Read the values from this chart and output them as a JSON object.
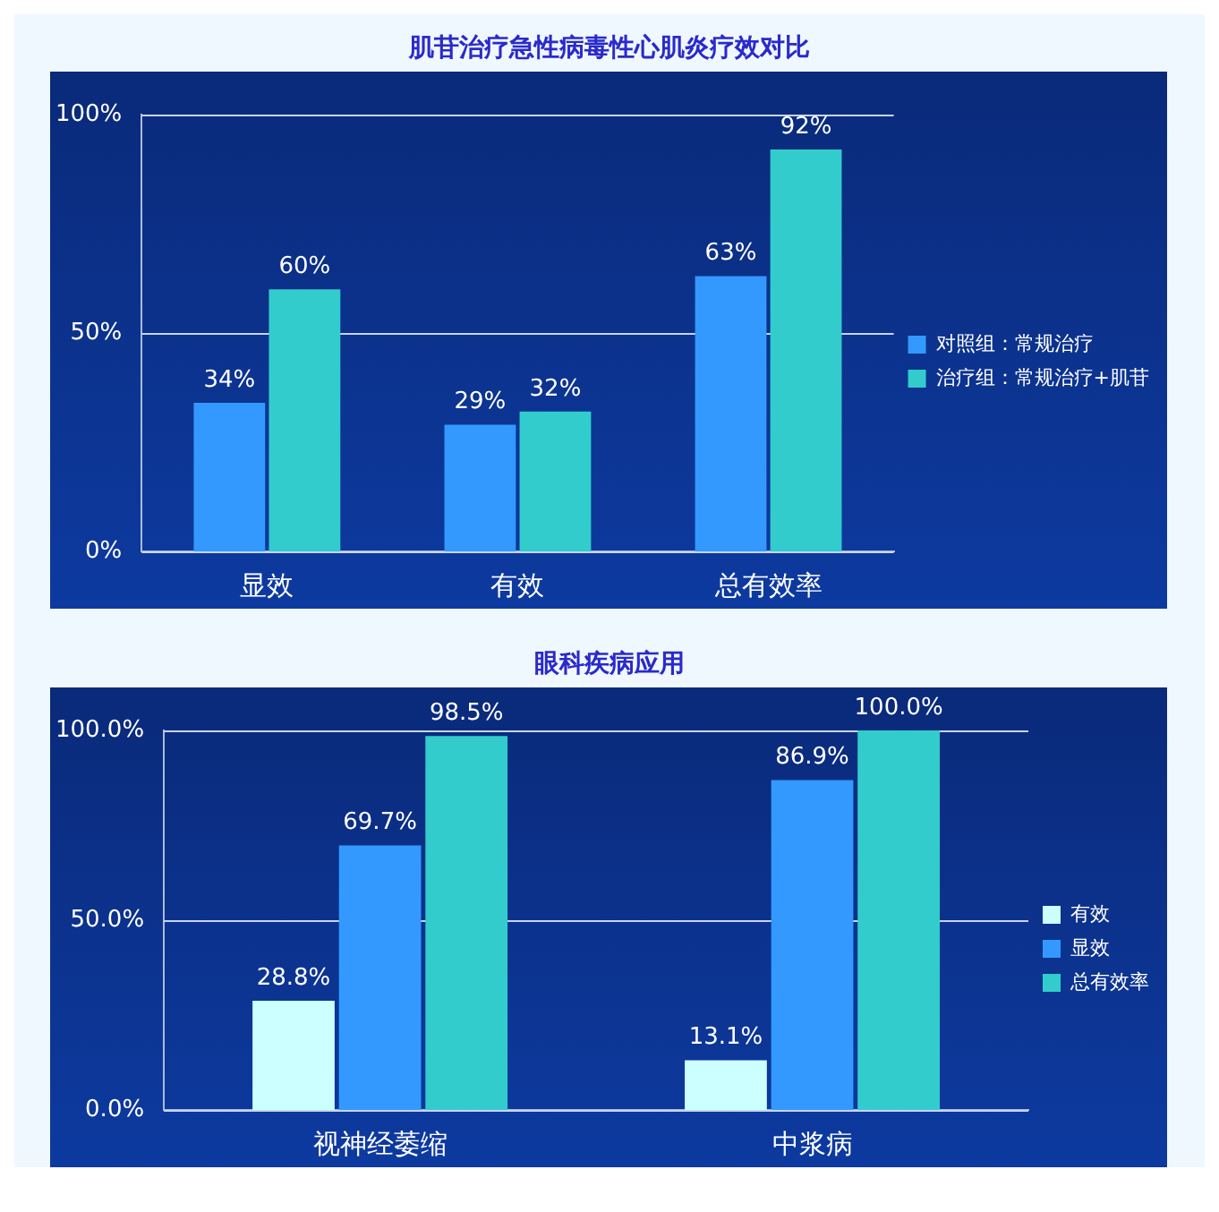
{
  "chart_data": [
    {
      "type": "bar",
      "title": "肌苷治疗急性病毒性心肌炎疗效对比",
      "categories": [
        "显效",
        "有效",
        "总有效率"
      ],
      "series": [
        {
          "name": "对照组：常规治疗",
          "color": "#3399ff",
          "values": [
            34,
            29,
            63
          ],
          "value_labels": [
            "34%",
            "29%",
            "63%"
          ]
        },
        {
          "name": "治疗组：常规治疗+肌苷",
          "color": "#33cccc",
          "values": [
            60,
            32,
            92
          ],
          "value_labels": [
            "60%",
            "32%",
            "92%"
          ]
        }
      ],
      "ylim": [
        0,
        100
      ],
      "yticks": [
        {
          "value": 0,
          "label": "0%"
        },
        {
          "value": 50,
          "label": "50%"
        },
        {
          "value": 100,
          "label": "100%"
        }
      ],
      "grid": "y",
      "legend": "right"
    },
    {
      "type": "bar",
      "title": "眼科疾病应用",
      "categories": [
        "视神经萎缩",
        "中浆病"
      ],
      "series": [
        {
          "name": "有效",
          "color": "#ccffff",
          "values": [
            28.8,
            13.1
          ],
          "value_labels": [
            "28.8%",
            "13.1%"
          ]
        },
        {
          "name": "显效",
          "color": "#3399ff",
          "values": [
            69.7,
            86.9
          ],
          "value_labels": [
            "69.7%",
            "86.9%"
          ]
        },
        {
          "name": "总有效率",
          "color": "#33cccc",
          "values": [
            98.5,
            100.0
          ],
          "value_labels": [
            "98.5%",
            "100.0%"
          ]
        }
      ],
      "ylim": [
        0,
        100
      ],
      "yticks": [
        {
          "value": 0,
          "label": "0.0%"
        },
        {
          "value": 50,
          "label": "50.0%"
        },
        {
          "value": 100,
          "label": "100.0%"
        }
      ],
      "grid": "y",
      "legend": "right"
    }
  ]
}
